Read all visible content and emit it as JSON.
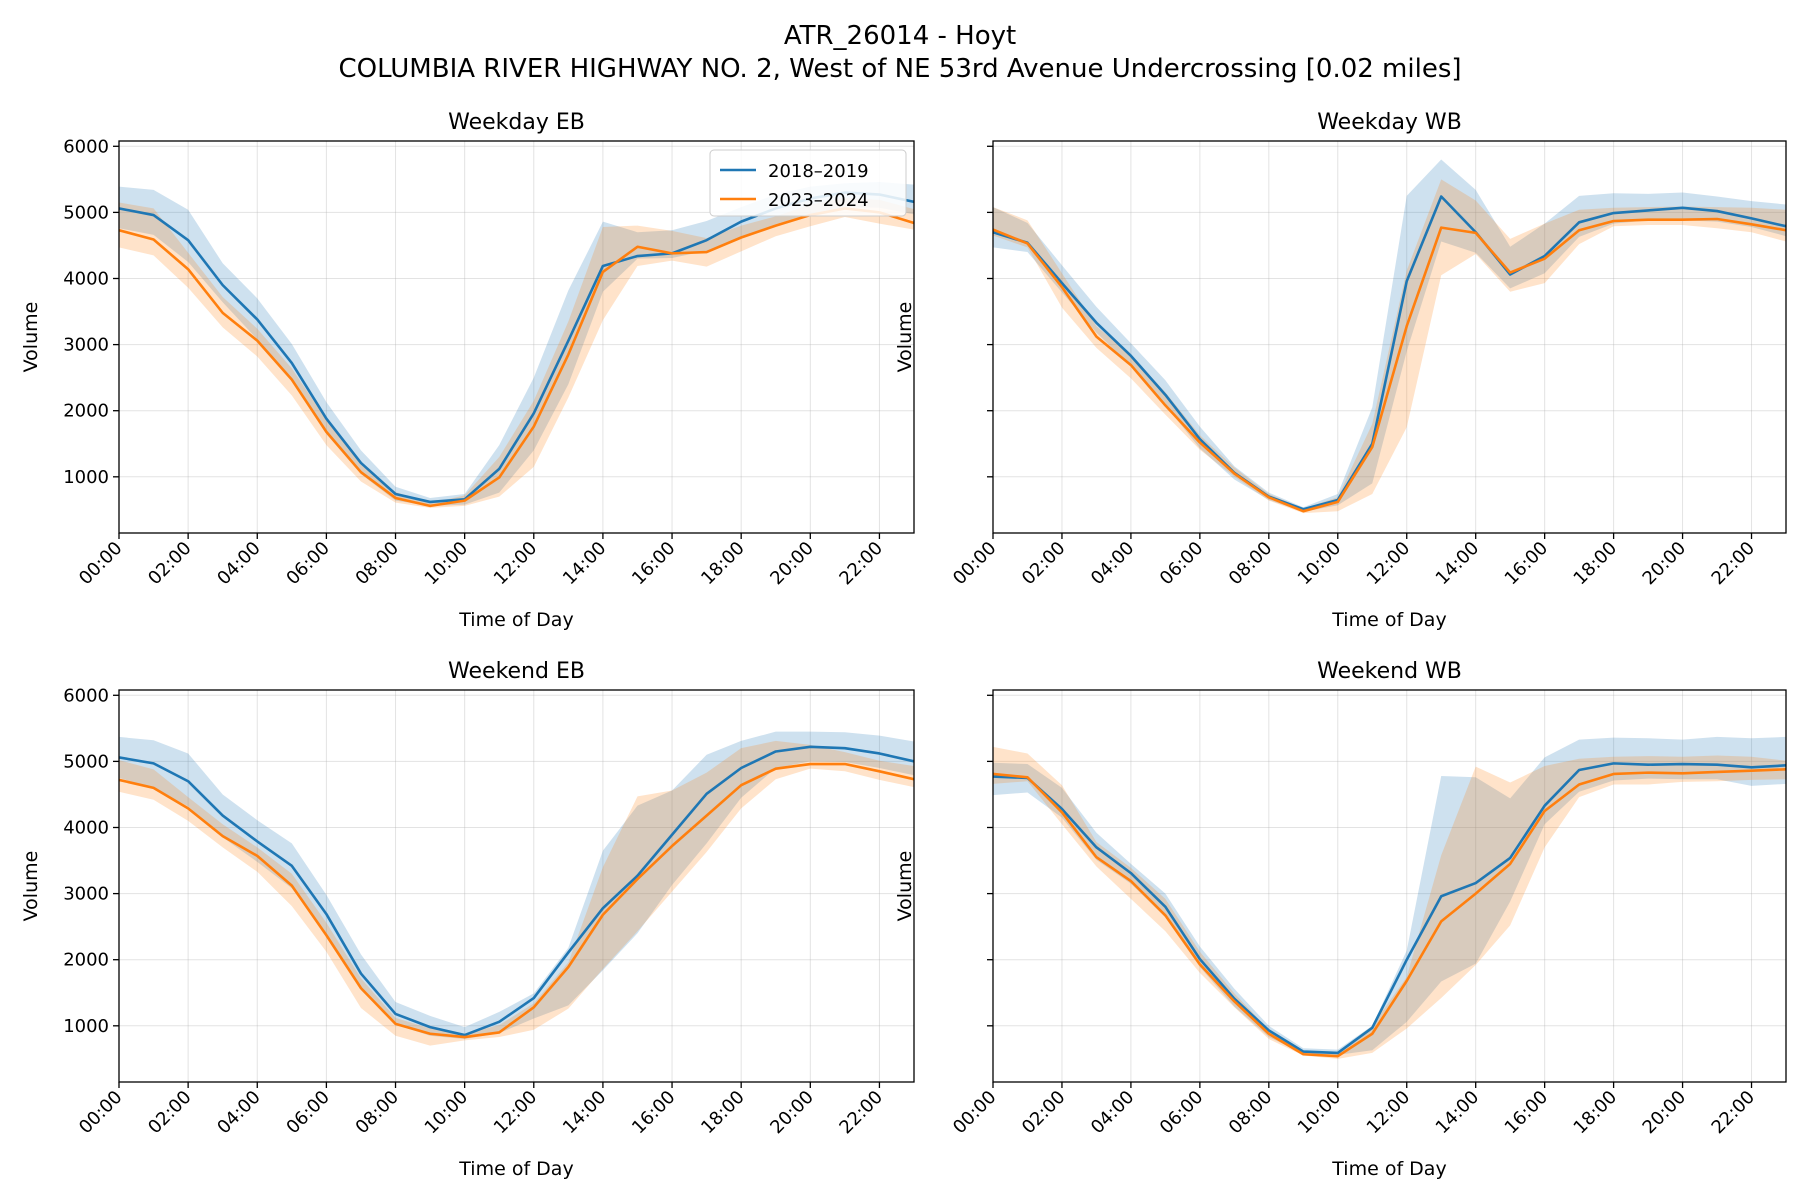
{
  "figure": {
    "title": "ATR_26014 - Hoyt",
    "subtitle": "COLUMBIA RIVER HIGHWAY NO. 2, West of NE 53rd Avenue Undercrossing [0.02 miles]"
  },
  "colors": {
    "series_2018_2019": "#1f77b4",
    "series_2023_2024": "#ff7f0e",
    "grid": "#b0b0b0",
    "axes": "#000000"
  },
  "chart_data": [
    {
      "type": "line",
      "title": "Weekday EB",
      "xlabel": "Time of Day",
      "ylabel": "Volume",
      "xlim": [
        0,
        23
      ],
      "ylim": [
        150,
        6080
      ],
      "grid": true,
      "legend_placement": "upper-right",
      "x": [
        0,
        1,
        2,
        3,
        4,
        5,
        6,
        7,
        8,
        9,
        10,
        11,
        12,
        13,
        14,
        15,
        16,
        17,
        18,
        19,
        20,
        21,
        22,
        23
      ],
      "x_tick_labels": [
        "00:00",
        "02:00",
        "04:00",
        "06:00",
        "08:00",
        "10:00",
        "12:00",
        "14:00",
        "16:00",
        "18:00",
        "20:00",
        "22:00"
      ],
      "y_ticks": [
        1000,
        2000,
        3000,
        4000,
        5000,
        6000
      ],
      "y_tick_labels": [
        "1000",
        "2000",
        "3000",
        "4000",
        "5000",
        "6000"
      ],
      "series": [
        {
          "name": "2018–2019",
          "values": [
            5060,
            4960,
            4580,
            3900,
            3380,
            2720,
            1880,
            1210,
            740,
            620,
            660,
            1120,
            1960,
            3060,
            4190,
            4340,
            4380,
            4580,
            4860,
            5060,
            5210,
            5300,
            5270,
            5160
          ],
          "lower": [
            4760,
            4660,
            4250,
            3640,
            3080,
            2450,
            1650,
            1040,
            640,
            560,
            580,
            760,
            1400,
            2400,
            3800,
            4300,
            4310,
            4420,
            4620,
            4820,
            4980,
            5080,
            5070,
            4970
          ],
          "upper": [
            5390,
            5340,
            5040,
            4230,
            3700,
            3010,
            2130,
            1400,
            850,
            680,
            740,
            1480,
            2500,
            3820,
            4860,
            4700,
            4730,
            4870,
            5080,
            5270,
            5390,
            5440,
            5460,
            5420
          ]
        },
        {
          "name": "2023–2024",
          "values": [
            4730,
            4590,
            4140,
            3480,
            3060,
            2470,
            1680,
            1070,
            680,
            560,
            640,
            990,
            1760,
            2850,
            4100,
            4480,
            4380,
            4400,
            4620,
            4800,
            4960,
            5060,
            5000,
            4840
          ],
          "lower": [
            4470,
            4350,
            3860,
            3260,
            2820,
            2230,
            1480,
            930,
            610,
            530,
            560,
            700,
            1150,
            2200,
            3370,
            4190,
            4270,
            4180,
            4410,
            4640,
            4790,
            4930,
            4830,
            4740
          ],
          "upper": [
            5150,
            5060,
            4390,
            3720,
            3240,
            2640,
            1860,
            1180,
            770,
            600,
            720,
            1300,
            2150,
            3350,
            4780,
            4800,
            4720,
            4610,
            4800,
            4940,
            5120,
            5220,
            5190,
            5050
          ]
        }
      ]
    },
    {
      "type": "line",
      "title": "Weekday WB",
      "xlabel": "Time of Day",
      "ylabel": "Volume",
      "xlim": [
        0,
        23
      ],
      "ylim": [
        150,
        6080
      ],
      "grid": true,
      "x": [
        0,
        1,
        2,
        3,
        4,
        5,
        6,
        7,
        8,
        9,
        10,
        11,
        12,
        13,
        14,
        15,
        16,
        17,
        18,
        19,
        20,
        21,
        22,
        23
      ],
      "x_tick_labels": [
        "00:00",
        "02:00",
        "04:00",
        "06:00",
        "08:00",
        "10:00",
        "12:00",
        "14:00",
        "16:00",
        "18:00",
        "20:00",
        "22:00"
      ],
      "y_ticks": [
        1000,
        2000,
        3000,
        4000,
        5000,
        6000
      ],
      "series": [
        {
          "name": "2018–2019",
          "values": [
            4700,
            4540,
            3930,
            3330,
            2830,
            2240,
            1570,
            1060,
            700,
            510,
            650,
            1500,
            3960,
            5240,
            4700,
            4060,
            4340,
            4850,
            4990,
            5030,
            5070,
            5020,
            4910,
            4790
          ],
          "lower": [
            4470,
            4400,
            3790,
            3180,
            2680,
            2080,
            1430,
            960,
            650,
            470,
            570,
            900,
            2900,
            4560,
            4390,
            3850,
            4080,
            4630,
            4830,
            4880,
            4880,
            4860,
            4780,
            4640
          ],
          "upper": [
            5080,
            4840,
            4200,
            3570,
            3020,
            2460,
            1760,
            1160,
            760,
            540,
            740,
            2050,
            5250,
            5800,
            5340,
            4480,
            4830,
            5250,
            5290,
            5280,
            5300,
            5240,
            5170,
            5120
          ]
        },
        {
          "name": "2023–2024",
          "values": [
            4740,
            4530,
            3870,
            3120,
            2690,
            2080,
            1520,
            1050,
            690,
            480,
            620,
            1450,
            3280,
            4770,
            4690,
            4090,
            4300,
            4730,
            4870,
            4890,
            4890,
            4900,
            4820,
            4730
          ],
          "lower": [
            4650,
            4470,
            3560,
            2950,
            2490,
            1940,
            1410,
            1000,
            640,
            450,
            480,
            740,
            1750,
            4050,
            4370,
            3800,
            3930,
            4520,
            4790,
            4810,
            4810,
            4760,
            4700,
            4560
          ],
          "upper": [
            5080,
            4880,
            4080,
            3280,
            2840,
            2280,
            1630,
            1140,
            740,
            520,
            690,
            1800,
            4120,
            5500,
            5180,
            4600,
            4830,
            5040,
            5070,
            5080,
            5090,
            5080,
            5070,
            5040
          ]
        }
      ]
    },
    {
      "type": "line",
      "title": "Weekend EB",
      "xlabel": "Time of Day",
      "ylabel": "Volume",
      "xlim": [
        0,
        23
      ],
      "ylim": [
        150,
        6080
      ],
      "grid": true,
      "x": [
        0,
        1,
        2,
        3,
        4,
        5,
        6,
        7,
        8,
        9,
        10,
        11,
        12,
        13,
        14,
        15,
        16,
        17,
        18,
        19,
        20,
        21,
        22,
        23
      ],
      "x_tick_labels": [
        "00:00",
        "02:00",
        "04:00",
        "06:00",
        "08:00",
        "10:00",
        "12:00",
        "14:00",
        "16:00",
        "18:00",
        "20:00",
        "22:00"
      ],
      "y_ticks": [
        1000,
        2000,
        3000,
        4000,
        5000,
        6000
      ],
      "y_tick_labels": [
        "1000",
        "2000",
        "3000",
        "4000",
        "5000",
        "6000"
      ],
      "series": [
        {
          "name": "2018–2019",
          "values": [
            5060,
            4970,
            4700,
            4180,
            3790,
            3420,
            2690,
            1790,
            1180,
            980,
            860,
            1060,
            1420,
            2110,
            2780,
            3270,
            3890,
            4510,
            4900,
            5150,
            5220,
            5200,
            5120,
            5000
          ],
          "lower": [
            4750,
            4600,
            4320,
            3850,
            3480,
            3080,
            2380,
            1540,
            1020,
            850,
            800,
            890,
            1110,
            1310,
            1840,
            2400,
            3130,
            3760,
            4450,
            4900,
            5000,
            4990,
            4900,
            4790
          ],
          "upper": [
            5370,
            5320,
            5120,
            4500,
            4110,
            3760,
            2980,
            2080,
            1360,
            1150,
            980,
            1210,
            1490,
            2180,
            3650,
            4330,
            4560,
            5100,
            5310,
            5450,
            5450,
            5440,
            5390,
            5300
          ]
        },
        {
          "name": "2023–2024",
          "values": [
            4720,
            4600,
            4290,
            3870,
            3570,
            3120,
            2370,
            1570,
            1030,
            880,
            830,
            900,
            1280,
            1890,
            2680,
            3220,
            3720,
            4180,
            4640,
            4890,
            4960,
            4960,
            4850,
            4730
          ],
          "lower": [
            4540,
            4420,
            4100,
            3700,
            3330,
            2810,
            2120,
            1270,
            850,
            700,
            780,
            830,
            940,
            1260,
            1860,
            2430,
            3030,
            3630,
            4290,
            4730,
            4890,
            4850,
            4720,
            4610
          ],
          "upper": [
            5020,
            4880,
            4460,
            4050,
            3700,
            3300,
            2560,
            1720,
            1120,
            960,
            880,
            1010,
            1340,
            1960,
            3400,
            4470,
            4560,
            4830,
            5200,
            5310,
            5250,
            5140,
            5010,
            4930
          ]
        }
      ]
    },
    {
      "type": "line",
      "title": "Weekend WB",
      "xlabel": "Time of Day",
      "ylabel": "Volume",
      "xlim": [
        0,
        23
      ],
      "ylim": [
        150,
        6080
      ],
      "grid": true,
      "x": [
        0,
        1,
        2,
        3,
        4,
        5,
        6,
        7,
        8,
        9,
        10,
        11,
        12,
        13,
        14,
        15,
        16,
        17,
        18,
        19,
        20,
        21,
        22,
        23
      ],
      "x_tick_labels": [
        "00:00",
        "02:00",
        "04:00",
        "06:00",
        "08:00",
        "10:00",
        "12:00",
        "14:00",
        "16:00",
        "18:00",
        "20:00",
        "22:00"
      ],
      "y_ticks": [
        1000,
        2000,
        3000,
        4000,
        5000,
        6000
      ],
      "series": [
        {
          "name": "2018–2019",
          "values": [
            4770,
            4750,
            4280,
            3700,
            3310,
            2800,
            2010,
            1410,
            930,
            610,
            590,
            970,
            2000,
            2960,
            3160,
            3540,
            4330,
            4870,
            4970,
            4950,
            4960,
            4950,
            4910,
            4940
          ],
          "lower": [
            4490,
            4530,
            4150,
            3510,
            3150,
            2640,
            1890,
            1290,
            830,
            580,
            560,
            630,
            1060,
            1670,
            1940,
            2880,
            4050,
            4540,
            4710,
            4740,
            4730,
            4730,
            4630,
            4660
          ],
          "upper": [
            4980,
            4960,
            4600,
            3920,
            3450,
            3000,
            2200,
            1560,
            1000,
            660,
            640,
            1000,
            2140,
            4780,
            4760,
            4440,
            5060,
            5330,
            5360,
            5350,
            5330,
            5370,
            5350,
            5370
          ]
        },
        {
          "name": "2023–2024",
          "values": [
            4810,
            4760,
            4230,
            3550,
            3190,
            2670,
            1930,
            1370,
            880,
            570,
            540,
            880,
            1680,
            2580,
            3000,
            3450,
            4250,
            4650,
            4810,
            4830,
            4820,
            4840,
            4860,
            4880
          ],
          "lower": [
            4660,
            4700,
            4050,
            3410,
            2920,
            2430,
            1800,
            1280,
            800,
            550,
            500,
            590,
            960,
            1420,
            1920,
            2520,
            3700,
            4460,
            4650,
            4650,
            4690,
            4700,
            4720,
            4730
          ],
          "upper": [
            5220,
            5120,
            4640,
            3780,
            3390,
            2920,
            2120,
            1490,
            940,
            620,
            600,
            1000,
            1740,
            3580,
            4920,
            4680,
            4930,
            5040,
            5070,
            5080,
            5070,
            5090,
            5070,
            5010
          ]
        }
      ]
    }
  ]
}
